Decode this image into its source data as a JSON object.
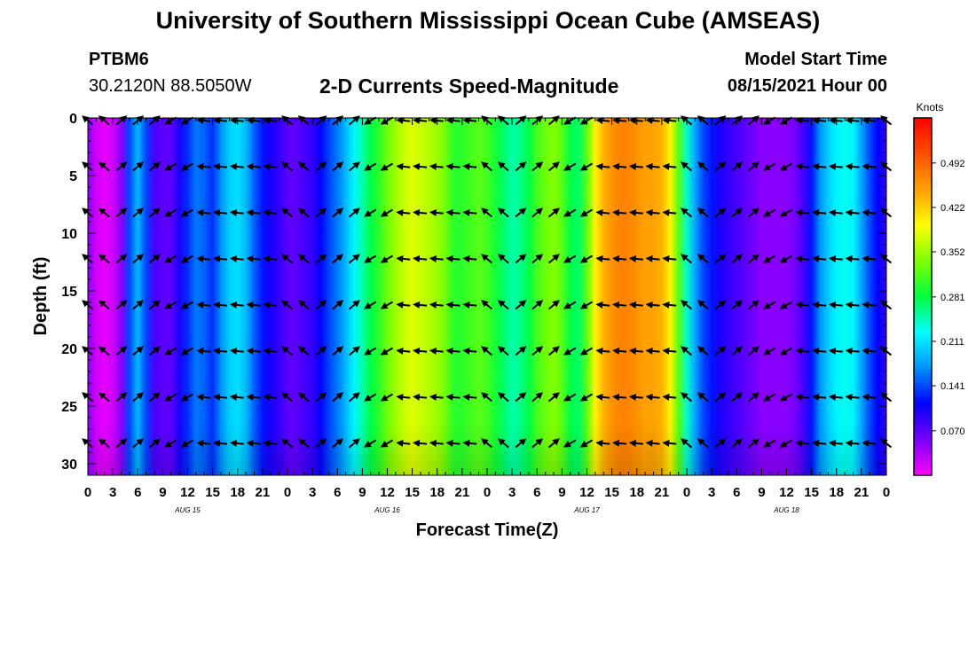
{
  "header": {
    "title": "University of Southern Mississippi Ocean Cube (AMSEAS)",
    "station": "PTBM6",
    "coords": "30.2120N  88.5050W",
    "plot_title": "2-D Currents Speed-Magnitude",
    "start_label": "Model Start Time",
    "start_value": "08/15/2021 Hour 00"
  },
  "footer": {
    "title": "University of Southern Mississippi Ocean Cube (AMSEAS)"
  },
  "chart_data": {
    "type": "heatmap",
    "xlabel": "Forecast Time(Z)",
    "ylabel": "Depth (ft)",
    "colorbar_label": "Knots",
    "colorbar_ticks": [
      "0.070",
      "0.141",
      "0.211",
      "0.281",
      "0.352",
      "0.422",
      "0.492"
    ],
    "colorbar_values": [
      0.07,
      0.141,
      0.211,
      0.281,
      0.352,
      0.422,
      0.492
    ],
    "vmin": 0.0,
    "vmax": 0.563,
    "colormap": [
      "#ff00ff",
      "#7a00ff",
      "#0000ff",
      "#0090ff",
      "#00ffff",
      "#00ff40",
      "#80ff00",
      "#ffff00",
      "#ffa000",
      "#ff5000",
      "#ff0000"
    ],
    "ylim": [
      0,
      31
    ],
    "y_ticks": [
      0,
      5,
      10,
      15,
      20,
      25,
      30
    ],
    "x_range_hours": [
      0,
      96
    ],
    "x_tick_labels": [
      "0",
      "3",
      "6",
      "9",
      "12",
      "15",
      "18",
      "21",
      "0",
      "3",
      "6",
      "9",
      "12",
      "15",
      "18",
      "21",
      "0",
      "3",
      "6",
      "9",
      "12",
      "15",
      "18",
      "21",
      "0",
      "3",
      "6",
      "9",
      "12",
      "15",
      "18",
      "21",
      "0"
    ],
    "day_labels": [
      "AUG 15",
      "AUG 16",
      "AUG 17",
      "AUG 18"
    ],
    "speed_profile_hours": [
      0,
      1,
      2,
      3,
      4,
      5,
      6,
      7,
      8,
      9,
      10,
      11,
      12,
      13,
      14,
      15,
      16,
      17,
      18,
      19,
      20,
      21,
      22,
      23,
      24,
      25,
      26,
      27,
      28,
      29,
      30,
      31,
      32,
      33,
      34,
      35,
      36,
      37,
      38,
      39,
      40,
      41,
      42,
      43,
      44,
      45,
      46,
      47,
      48,
      49,
      50,
      51,
      52,
      53,
      54,
      55,
      56,
      57,
      58,
      59,
      60,
      61,
      62,
      63,
      64,
      65,
      66,
      67,
      68,
      69,
      70,
      71,
      72,
      73,
      74,
      75,
      76,
      77,
      78,
      79,
      80,
      81,
      82,
      83,
      84,
      85,
      86,
      87,
      88,
      89,
      90,
      91,
      92,
      93,
      94,
      95,
      96
    ],
    "speed_profile_knots": [
      0.05,
      0.02,
      0.01,
      0.02,
      0.05,
      0.14,
      0.19,
      0.14,
      0.08,
      0.07,
      0.07,
      0.1,
      0.13,
      0.16,
      0.15,
      0.13,
      0.17,
      0.2,
      0.21,
      0.19,
      0.15,
      0.12,
      0.1,
      0.09,
      0.07,
      0.07,
      0.08,
      0.09,
      0.11,
      0.14,
      0.16,
      0.19,
      0.22,
      0.25,
      0.28,
      0.3,
      0.33,
      0.35,
      0.37,
      0.38,
      0.37,
      0.36,
      0.35,
      0.33,
      0.3,
      0.3,
      0.31,
      0.32,
      0.31,
      0.29,
      0.27,
      0.25,
      0.26,
      0.28,
      0.31,
      0.33,
      0.34,
      0.32,
      0.28,
      0.27,
      0.32,
      0.4,
      0.44,
      0.46,
      0.47,
      0.47,
      0.46,
      0.45,
      0.45,
      0.44,
      0.4,
      0.32,
      0.24,
      0.18,
      0.14,
      0.12,
      0.1,
      0.09,
      0.08,
      0.07,
      0.06,
      0.05,
      0.05,
      0.05,
      0.05,
      0.06,
      0.08,
      0.12,
      0.17,
      0.2,
      0.22,
      0.23,
      0.22,
      0.18,
      0.14,
      0.11,
      0.09
    ]
  }
}
